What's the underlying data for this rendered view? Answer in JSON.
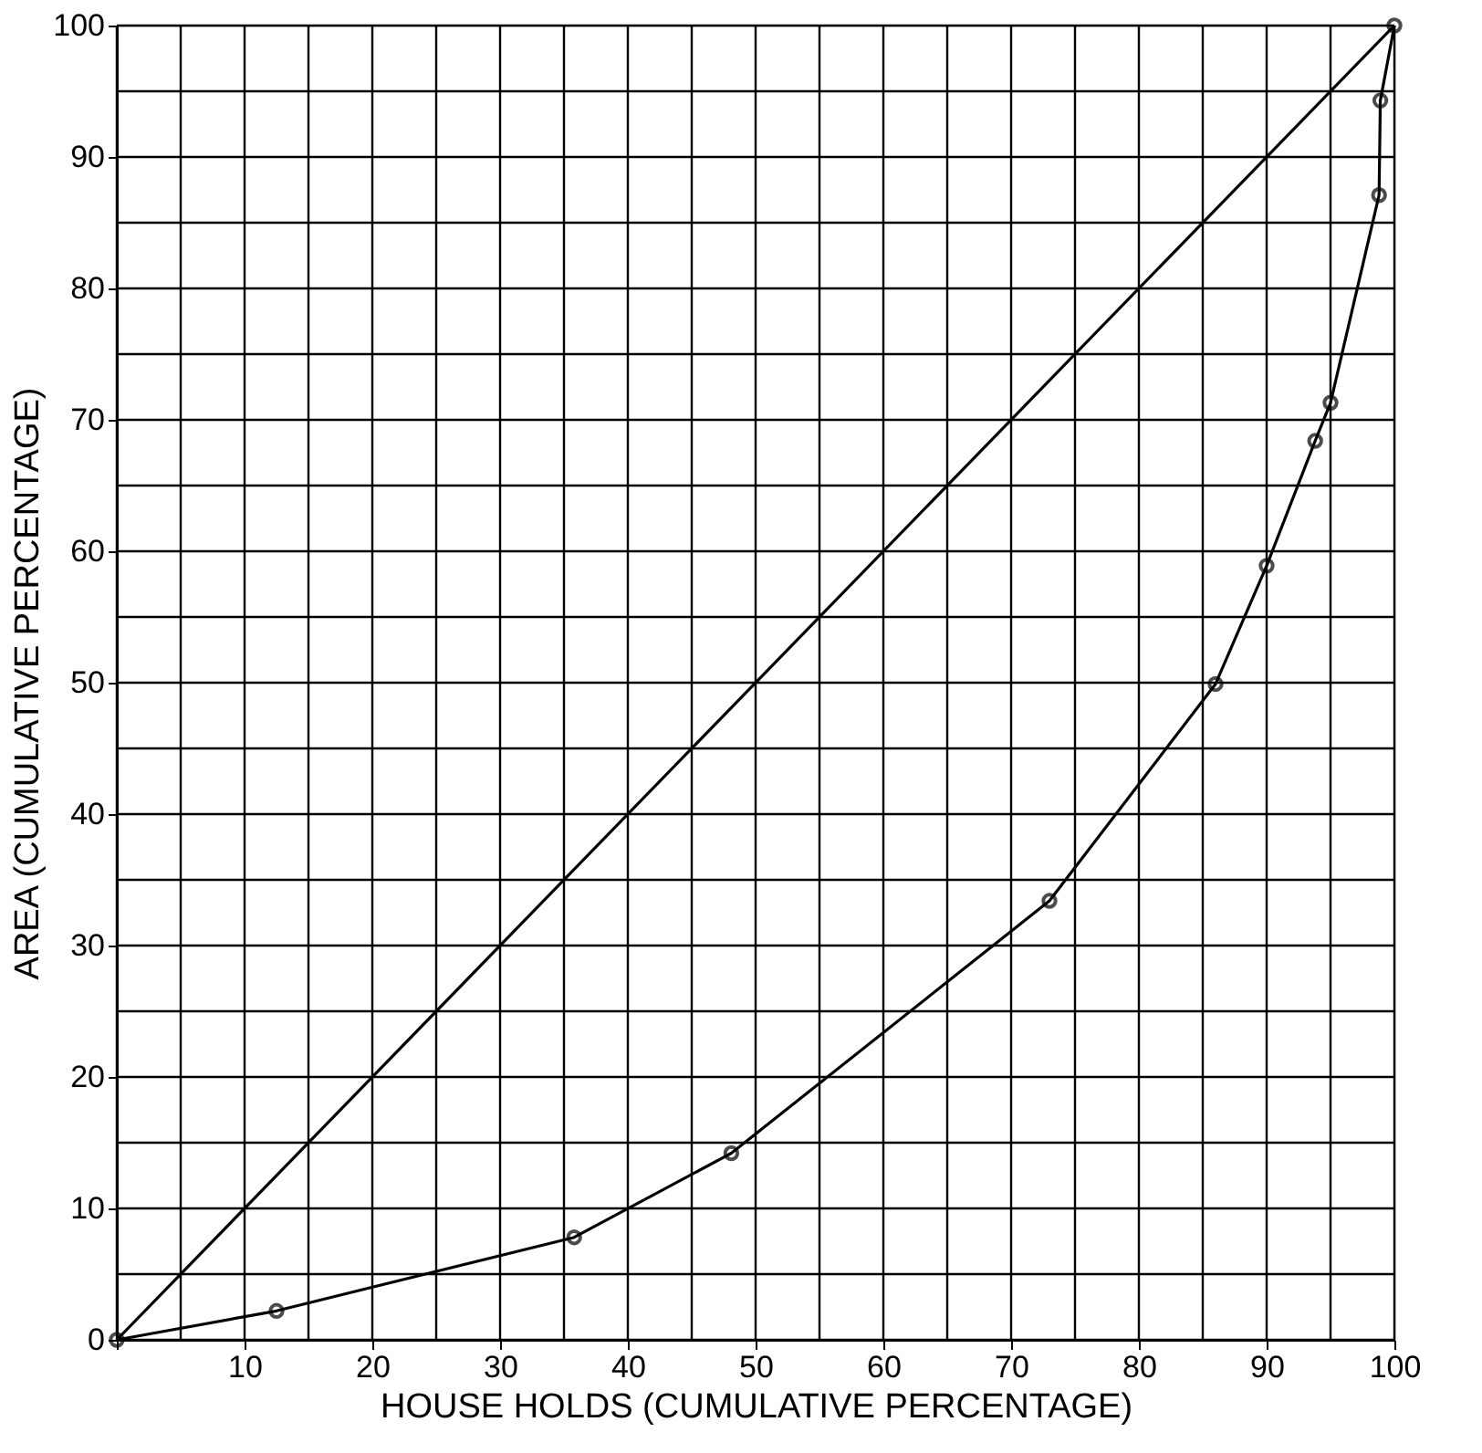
{
  "chart_data": {
    "type": "line",
    "xlabel": "HOUSE HOLDS (CUMULATIVE PERCENTAGE)",
    "ylabel": "AREA (CUMULATIVE PERCENTAGE)",
    "series": [
      {
        "color": "#000000",
        "marker": "circle",
        "x": [
          0,
          12.5,
          35.8,
          48.1,
          73.0,
          86.0,
          90.0,
          93.8,
          95.0,
          98.8,
          98.9,
          100
        ],
        "values": [
          0,
          2.2,
          7.8,
          14.2,
          33.4,
          49.9,
          58.9,
          68.4,
          71.3,
          87.1,
          94.3,
          100
        ]
      },
      {
        "color": "#000000",
        "marker": "none",
        "x": [
          0,
          100
        ],
        "values": [
          0,
          100
        ]
      }
    ],
    "xlim": [
      0,
      100
    ],
    "ylim": [
      0,
      100
    ],
    "xticks": [
      {
        "value": 0,
        "label": null
      },
      {
        "value": 5,
        "label": null
      },
      10,
      {
        "value": 15,
        "label": null
      },
      20,
      {
        "value": 25,
        "label": null
      },
      30,
      {
        "value": 35,
        "label": null
      },
      40,
      {
        "value": 45,
        "label": null
      },
      50,
      {
        "value": 55,
        "label": null
      },
      60,
      {
        "value": 65,
        "label": null
      },
      70,
      {
        "value": 75,
        "label": null
      },
      80,
      {
        "value": 85,
        "label": null
      },
      90,
      {
        "value": 95,
        "label": null
      },
      100
    ],
    "yticks": [
      0,
      {
        "value": 5,
        "label": null
      },
      10,
      {
        "value": 15,
        "label": null
      },
      20,
      {
        "value": 25,
        "label": null
      },
      30,
      {
        "value": 35,
        "label": null
      },
      40,
      {
        "value": 45,
        "label": null
      },
      50,
      {
        "value": 55,
        "label": null
      },
      60,
      {
        "value": 65,
        "label": null
      },
      70,
      {
        "value": 75,
        "label": null
      },
      80,
      {
        "value": 85,
        "label": null
      },
      90,
      {
        "value": 95,
        "label": null
      },
      100
    ],
    "grid": true,
    "line_style": "solid"
  }
}
